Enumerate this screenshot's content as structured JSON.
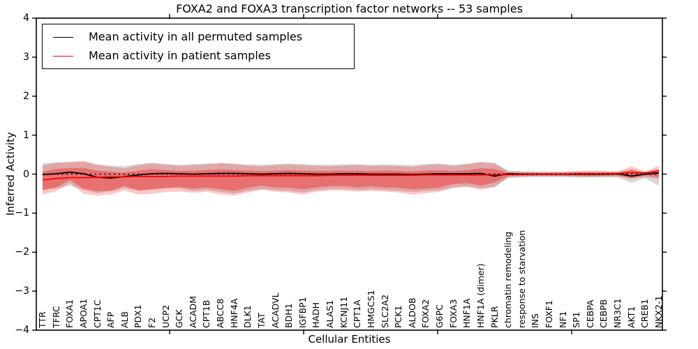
{
  "chart_data": {
    "type": "line",
    "title": "FOXA2 and FOXA3 transcription factor networks -- 53 samples",
    "xlabel": "Cellular Entities",
    "ylabel": "Inferred Activity",
    "ylim": [
      -4,
      4
    ],
    "ytick_labels": [
      "4",
      "3",
      "2",
      "1",
      "0",
      "−1",
      "−2",
      "−3",
      "−4"
    ],
    "ytick_values": [
      4,
      3,
      2,
      1,
      0,
      -1,
      -2,
      -3,
      -4
    ],
    "grid": false,
    "legend_position": "upper left",
    "legend": [
      {
        "label": "Mean activity in all permuted samples",
        "color": "#000000"
      },
      {
        "label": "Mean activity in patient samples",
        "color": "#ff0000"
      }
    ],
    "categories": [
      "TTR",
      "TFRC",
      "FOXA1",
      "APOA1",
      "CPT1C",
      "AFP",
      "ALB",
      "PDX1",
      "F2",
      "UCP2",
      "GCK",
      "ACADM",
      "CPT1B",
      "ABCC8",
      "HNF4A",
      "DLK1",
      "TAT",
      "ACADVL",
      "BDH1",
      "IGFBP1",
      "HADH",
      "ALAS1",
      "KCNJ11",
      "CPT1A",
      "HMGCS1",
      "SLC2A2",
      "PCK1",
      "ALDOB",
      "FOXA2",
      "G6PC",
      "FOXA3",
      "HNF1A",
      "HNF1A (dimer)",
      "PKLR",
      "chromatin remodeling",
      "response to starvation",
      "INS",
      "FOXF1",
      "NF1",
      "SP1",
      "CEBPA",
      "CEBPB",
      "NR3C1",
      "AKT1",
      "CREB1",
      "NKX2-1"
    ],
    "series": [
      {
        "name": "Mean activity in all permuted samples",
        "color": "#000000",
        "style": "solid",
        "values": [
          -0.01,
          0.01,
          0.05,
          0.01,
          -0.08,
          -0.1,
          -0.06,
          -0.02,
          0.01,
          0.02,
          0.01,
          0.0,
          0.01,
          0.02,
          0.02,
          0.01,
          0.0,
          0.01,
          0.02,
          0.01,
          0.0,
          0.0,
          0.01,
          0.01,
          0.0,
          0.0,
          0.0,
          -0.01,
          0.0,
          0.01,
          0.01,
          0.01,
          0.02,
          -0.05,
          0.01,
          0.0,
          0.0,
          0.0,
          0.0,
          0.0,
          0.0,
          0.0,
          0.01,
          -0.05,
          0.0,
          0.03
        ]
      },
      {
        "name": "Mean activity in patient samples",
        "color": "#ff0000",
        "style": "solid",
        "values": [
          -0.15,
          -0.11,
          -0.09,
          -0.09,
          -0.08,
          -0.07,
          -0.07,
          -0.06,
          -0.06,
          -0.06,
          -0.05,
          -0.05,
          -0.05,
          -0.05,
          -0.05,
          -0.04,
          -0.04,
          -0.04,
          -0.04,
          -0.04,
          -0.04,
          -0.03,
          -0.03,
          -0.03,
          -0.03,
          -0.03,
          -0.03,
          -0.03,
          -0.02,
          -0.02,
          -0.02,
          -0.02,
          -0.02,
          -0.01,
          -0.01,
          -0.01,
          0.0,
          0.0,
          0.0,
          0.01,
          0.01,
          0.01,
          0.02,
          0.04,
          0.03,
          0.08
        ]
      }
    ],
    "baseline": {
      "value": 0,
      "color": "#000000",
      "style": "dashed"
    },
    "bands": [
      {
        "name": "permuted-samples-range",
        "color": "#999999",
        "opacity": 0.4,
        "top": [
          0.28,
          0.3,
          0.3,
          0.32,
          0.26,
          0.22,
          0.2,
          0.26,
          0.29,
          0.26,
          0.24,
          0.26,
          0.27,
          0.29,
          0.27,
          0.25,
          0.24,
          0.26,
          0.27,
          0.26,
          0.24,
          0.24,
          0.25,
          0.26,
          0.24,
          0.25,
          0.24,
          0.23,
          0.26,
          0.27,
          0.24,
          0.27,
          0.31,
          0.29,
          0.09,
          0.07,
          0.06,
          0.06,
          0.06,
          0.07,
          0.07,
          0.07,
          0.06,
          0.1,
          0.06,
          0.1
        ],
        "bottom": [
          -0.42,
          -0.36,
          -0.3,
          -0.4,
          -0.48,
          -0.44,
          -0.36,
          -0.42,
          -0.4,
          -0.37,
          -0.36,
          -0.43,
          -0.4,
          -0.46,
          -0.5,
          -0.43,
          -0.38,
          -0.41,
          -0.43,
          -0.47,
          -0.41,
          -0.38,
          -0.38,
          -0.41,
          -0.39,
          -0.41,
          -0.43,
          -0.46,
          -0.43,
          -0.41,
          -0.33,
          -0.31,
          -0.36,
          -0.33,
          -0.1,
          -0.08,
          -0.07,
          -0.07,
          -0.07,
          -0.08,
          -0.08,
          -0.08,
          -0.08,
          -0.22,
          -0.1,
          -0.3
        ]
      },
      {
        "name": "patient-samples-range-outer",
        "color": "#ff0000",
        "opacity": 0.22,
        "top": [
          0.22,
          0.29,
          0.32,
          0.34,
          0.23,
          0.19,
          0.15,
          0.23,
          0.28,
          0.24,
          0.21,
          0.23,
          0.25,
          0.28,
          0.25,
          0.22,
          0.2,
          0.23,
          0.25,
          0.23,
          0.21,
          0.21,
          0.22,
          0.23,
          0.21,
          0.22,
          0.21,
          0.19,
          0.23,
          0.25,
          0.21,
          0.25,
          0.31,
          0.28,
          0.07,
          0.06,
          0.06,
          0.06,
          0.06,
          0.08,
          0.08,
          0.08,
          0.07,
          0.2,
          0.07,
          0.22
        ],
        "bottom": [
          -0.52,
          -0.44,
          -0.22,
          -0.5,
          -0.55,
          -0.52,
          -0.42,
          -0.52,
          -0.5,
          -0.46,
          -0.44,
          -0.48,
          -0.45,
          -0.52,
          -0.55,
          -0.47,
          -0.4,
          -0.45,
          -0.47,
          -0.52,
          -0.45,
          -0.42,
          -0.42,
          -0.45,
          -0.43,
          -0.45,
          -0.47,
          -0.52,
          -0.49,
          -0.45,
          -0.36,
          -0.33,
          -0.4,
          -0.33,
          -0.08,
          -0.07,
          -0.06,
          -0.06,
          -0.06,
          -0.07,
          -0.07,
          -0.07,
          -0.06,
          -0.12,
          -0.07,
          -0.12
        ]
      },
      {
        "name": "patient-samples-range-inner",
        "color": "#ff0000",
        "opacity": 0.33,
        "top": [
          0.06,
          0.13,
          0.16,
          0.16,
          0.09,
          0.06,
          0.04,
          0.09,
          0.13,
          0.1,
          0.08,
          0.09,
          0.1,
          0.12,
          0.1,
          0.09,
          0.08,
          0.09,
          0.1,
          0.09,
          0.08,
          0.08,
          0.09,
          0.09,
          0.08,
          0.09,
          0.08,
          0.07,
          0.09,
          0.1,
          0.08,
          0.1,
          0.15,
          0.14,
          0.04,
          0.03,
          0.03,
          0.03,
          0.03,
          0.04,
          0.04,
          0.04,
          0.03,
          0.12,
          0.03,
          0.14
        ],
        "bottom": [
          -0.4,
          -0.34,
          -0.15,
          -0.38,
          -0.44,
          -0.42,
          -0.3,
          -0.42,
          -0.38,
          -0.35,
          -0.33,
          -0.37,
          -0.34,
          -0.39,
          -0.43,
          -0.35,
          -0.29,
          -0.34,
          -0.35,
          -0.39,
          -0.34,
          -0.31,
          -0.31,
          -0.34,
          -0.31,
          -0.34,
          -0.35,
          -0.39,
          -0.37,
          -0.34,
          -0.25,
          -0.23,
          -0.29,
          -0.21,
          -0.05,
          -0.04,
          -0.04,
          -0.04,
          -0.04,
          -0.04,
          -0.05,
          -0.04,
          -0.04,
          -0.1,
          -0.04,
          -0.08
        ]
      }
    ]
  }
}
